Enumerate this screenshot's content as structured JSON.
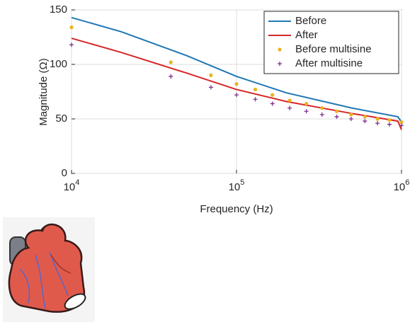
{
  "chart_data": {
    "type": "line",
    "xlabel": "Frequency (Hz)",
    "ylabel": "Magnitude (Ω)",
    "xscale": "log",
    "grid": true,
    "legend": "upper right",
    "xlim": [
      10000,
      1000000
    ],
    "ylim": [
      0,
      150
    ],
    "xticks": [
      {
        "value": 10000,
        "label": "10",
        "exp": "4"
      },
      {
        "value": 100000,
        "label": "10",
        "exp": "5"
      },
      {
        "value": 1000000,
        "label": "10",
        "exp": "6"
      }
    ],
    "yticks": [
      0,
      50,
      100,
      150
    ],
    "series": [
      {
        "name": "Before",
        "color": "#1f77b4",
        "style": "line",
        "x": [
          10000,
          20000,
          50000,
          100000,
          200000,
          500000,
          950000,
          1000000
        ],
        "values": [
          143,
          130,
          108,
          89,
          74,
          60,
          52,
          47
        ]
      },
      {
        "name": "After",
        "color": "#d62728",
        "style": "line",
        "x": [
          10000,
          20000,
          50000,
          100000,
          200000,
          500000,
          950000,
          1000000
        ],
        "values": [
          124,
          111,
          92,
          77,
          66,
          55,
          48,
          40
        ]
      },
      {
        "name": "Before multisine",
        "color": "#edb120",
        "style": "dot",
        "x": [
          10000,
          40000,
          70000,
          100000,
          130000,
          165000,
          210000,
          265000,
          330000,
          405000,
          495000,
          600000,
          715000,
          845000,
          1000000
        ],
        "values": [
          134,
          102,
          90,
          82,
          77,
          72,
          67,
          64,
          60,
          57,
          54,
          52,
          50,
          49,
          47
        ]
      },
      {
        "name": "After multisine",
        "color": "#7e2f8e",
        "style": "plus",
        "x": [
          10000,
          40000,
          70000,
          100000,
          130000,
          165000,
          210000,
          265000,
          330000,
          405000,
          495000,
          600000,
          715000,
          845000,
          1000000
        ],
        "values": [
          118,
          89,
          79,
          72,
          68,
          64,
          60,
          57,
          54,
          52,
          50,
          48,
          46,
          45,
          44
        ]
      }
    ]
  }
}
